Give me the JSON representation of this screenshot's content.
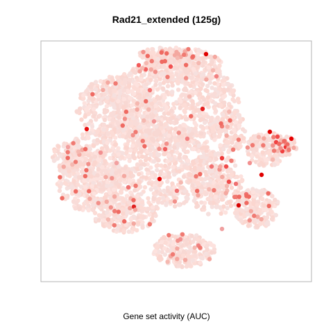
{
  "chart_data": {
    "type": "scatter",
    "title": "Rad21_extended (125g)",
    "xlabel": "Gene set activity (AUC)",
    "ylabel": "",
    "grid": false,
    "legend": "none",
    "colors": {
      "low": "#fde0dc",
      "high": "#e00000",
      "frame": "#b3b3b3"
    }
  }
}
